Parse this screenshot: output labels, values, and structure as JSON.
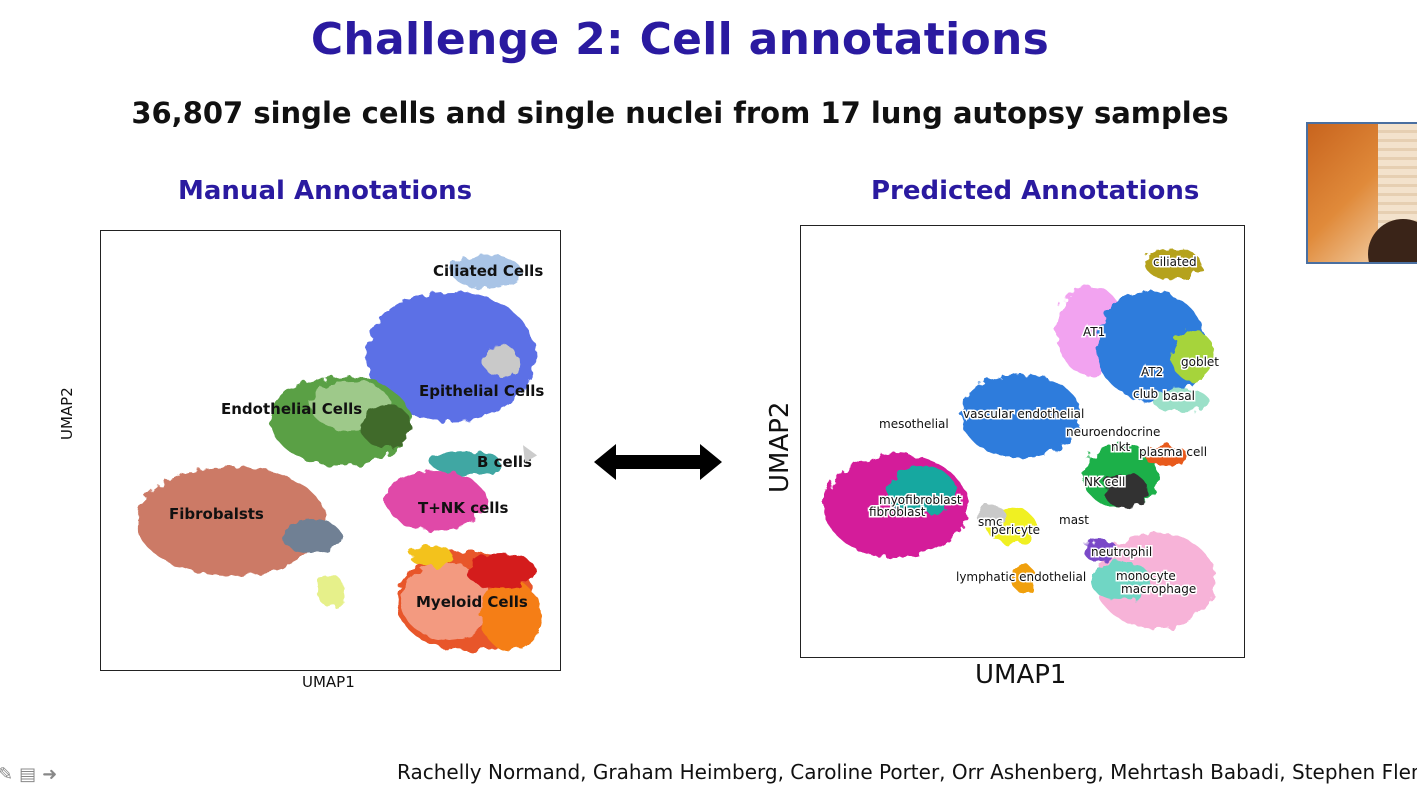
{
  "slide": {
    "title": "Challenge 2: Cell annotations",
    "subtitle": "36,807 single cells and single nuclei from 17 lung autopsy samples",
    "authors": "Rachelly Normand, Graham Heimberg, Caroline Porter, Orr Ashenberg, Mehrtash Babadi, Stephen Fleming"
  },
  "arrow": {
    "icon": "double-arrow-icon",
    "color": "#000000"
  },
  "toolbar": {
    "icons": [
      "pen-icon",
      "notes-icon",
      "next-arrow-icon"
    ]
  },
  "chart_data": [
    {
      "type": "scatter",
      "title": "Manual Annotations",
      "xlabel": "UMAP1",
      "ylabel": "UMAP2",
      "legend": "none",
      "grid": false,
      "clusters": [
        {
          "name": "Ciliated Cells",
          "color": "#a9c4e6"
        },
        {
          "name": "Epithelial Cells",
          "color": "#5b6fe6"
        },
        {
          "name": "Endothelial Cells",
          "color": "#5aa045"
        },
        {
          "name": "B cells",
          "color": "#3fa7a3"
        },
        {
          "name": "T+NK cells",
          "color": "#e04aa8"
        },
        {
          "name": "Fibrobalsts",
          "color": "#cc7a66"
        },
        {
          "name": "Myeloid Cells",
          "color": "#e8562a"
        }
      ]
    },
    {
      "type": "scatter",
      "title": "Predicted Annotations",
      "xlabel": "UMAP1",
      "ylabel": "UMAP2",
      "legend": "none",
      "grid": false,
      "labels": [
        "ciliated",
        "AT1",
        "goblet",
        "AT2",
        "club",
        "basal",
        "vascular endothelial",
        "mesothelial",
        "neuroendocrine",
        "nkt",
        "plasma cell",
        "NK cell",
        "myofibroblast",
        "fibroblast",
        "smc",
        "pericyte",
        "mast",
        "neutrophil",
        "lymphatic endothelial",
        "monocyte",
        "macrophage"
      ]
    }
  ]
}
